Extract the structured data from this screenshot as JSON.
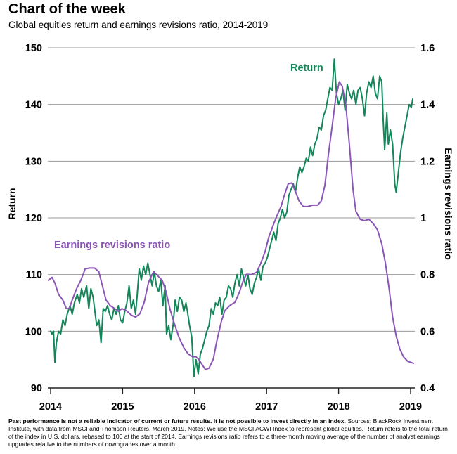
{
  "header": {
    "title": "Chart of the week",
    "subtitle": "Global equities return and earnings revisions ratio, 2014-2019"
  },
  "footnote": {
    "bold": "Past performance is not a reliable indicator of current or future results. It is not possible to invest directly in an index.",
    "text": " Sources: BlackRock Investment Institute, with data from MSCI and Thomson Reuters, March 2019. Notes: We use the MSCI ACWI Index to represent global equities. Return refers to the total return of the index in U.S. dollars, rebased to 100 at the start of 2014. Earnings revisions ratio refers to a three-month moving average of the number of analyst earnings upgrades relative to the numbers of downgrades over a month."
  },
  "chart_data": {
    "type": "line",
    "title": "Chart of the week",
    "xlabel": "",
    "ylabel": "Return",
    "y2label": "Earnings revisions ratio",
    "xlim": [
      2014,
      2019
    ],
    "ylim": [
      90,
      150
    ],
    "y2lim": [
      0.4,
      1.6
    ],
    "x_ticks": [
      "2014",
      "2015",
      "2016",
      "2017",
      "2018",
      "2019"
    ],
    "y_ticks": [
      "90",
      "100",
      "110",
      "120",
      "130",
      "140",
      "150"
    ],
    "y2_ticks": [
      "0.4",
      "0.6",
      "0.8",
      "1",
      "1.2",
      "1.4",
      "1.6"
    ],
    "grid": true,
    "colors": {
      "return": "#12875a",
      "earnings": "#8a55b5"
    },
    "series": [
      {
        "name": "Return",
        "axis": "left",
        "label_text": "Return",
        "points": [
          [
            2014.0,
            100
          ],
          [
            2014.02,
            99.5
          ],
          [
            2014.04,
            100
          ],
          [
            2014.06,
            94.5
          ],
          [
            2014.08,
            98
          ],
          [
            2014.11,
            100
          ],
          [
            2014.14,
            99.5
          ],
          [
            2014.17,
            102
          ],
          [
            2014.2,
            101
          ],
          [
            2014.23,
            103
          ],
          [
            2014.27,
            104.5
          ],
          [
            2014.3,
            103
          ],
          [
            2014.33,
            105
          ],
          [
            2014.37,
            106.5
          ],
          [
            2014.4,
            105
          ],
          [
            2014.43,
            107.5
          ],
          [
            2014.46,
            106
          ],
          [
            2014.5,
            108
          ],
          [
            2014.53,
            104
          ],
          [
            2014.56,
            107.5
          ],
          [
            2014.59,
            106
          ],
          [
            2014.61,
            104
          ],
          [
            2014.64,
            101
          ],
          [
            2014.67,
            102
          ],
          [
            2014.7,
            98
          ],
          [
            2014.73,
            104
          ],
          [
            2014.76,
            103.5
          ],
          [
            2014.79,
            104.5
          ],
          [
            2014.82,
            103
          ],
          [
            2014.85,
            102
          ],
          [
            2014.88,
            104
          ],
          [
            2014.91,
            103
          ],
          [
            2014.94,
            104.5
          ],
          [
            2014.97,
            102
          ],
          [
            2015.0,
            101.5
          ],
          [
            2015.03,
            103.5
          ],
          [
            2015.06,
            105
          ],
          [
            2015.09,
            108
          ],
          [
            2015.12,
            104
          ],
          [
            2015.15,
            105.5
          ],
          [
            2015.18,
            103
          ],
          [
            2015.2,
            106
          ],
          [
            2015.23,
            111
          ],
          [
            2015.26,
            109
          ],
          [
            2015.29,
            111.5
          ],
          [
            2015.32,
            110
          ],
          [
            2015.35,
            112
          ],
          [
            2015.38,
            110
          ],
          [
            2015.41,
            108
          ],
          [
            2015.44,
            110.5
          ],
          [
            2015.47,
            108
          ],
          [
            2015.5,
            107
          ],
          [
            2015.53,
            109
          ],
          [
            2015.56,
            104.5
          ],
          [
            2015.59,
            108
          ],
          [
            2015.61,
            99.5
          ],
          [
            2015.64,
            101
          ],
          [
            2015.67,
            98.5
          ],
          [
            2015.7,
            101
          ],
          [
            2015.73,
            105.5
          ],
          [
            2015.76,
            103.5
          ],
          [
            2015.79,
            106
          ],
          [
            2015.82,
            105.5
          ],
          [
            2015.85,
            103.5
          ],
          [
            2015.88,
            105
          ],
          [
            2015.9,
            103.5
          ],
          [
            2015.93,
            101
          ],
          [
            2015.96,
            99
          ],
          [
            2015.99,
            92
          ],
          [
            2016.02,
            95
          ],
          [
            2016.05,
            92.5
          ],
          [
            2016.08,
            96
          ],
          [
            2016.11,
            97
          ],
          [
            2016.14,
            98.5
          ],
          [
            2016.17,
            100
          ],
          [
            2016.2,
            101
          ],
          [
            2016.23,
            104
          ],
          [
            2016.26,
            103
          ],
          [
            2016.29,
            105
          ],
          [
            2016.32,
            104.5
          ],
          [
            2016.35,
            106
          ],
          [
            2016.38,
            103
          ],
          [
            2016.41,
            105.5
          ],
          [
            2016.44,
            106
          ],
          [
            2016.47,
            108
          ],
          [
            2016.5,
            107.5
          ],
          [
            2016.53,
            106
          ],
          [
            2016.56,
            108.5
          ],
          [
            2016.59,
            110
          ],
          [
            2016.62,
            108
          ],
          [
            2016.65,
            111
          ],
          [
            2016.68,
            109.5
          ],
          [
            2016.71,
            108
          ],
          [
            2016.74,
            110
          ],
          [
            2016.77,
            107.5
          ],
          [
            2016.8,
            106.5
          ],
          [
            2016.83,
            108.5
          ],
          [
            2016.86,
            109.5
          ],
          [
            2016.89,
            111
          ],
          [
            2016.92,
            109
          ],
          [
            2016.95,
            111.5
          ],
          [
            2016.98,
            112
          ],
          [
            2017.01,
            113
          ],
          [
            2017.04,
            114.5
          ],
          [
            2017.07,
            116
          ],
          [
            2017.1,
            117.5
          ],
          [
            2017.13,
            116
          ],
          [
            2017.16,
            119
          ],
          [
            2017.19,
            120
          ],
          [
            2017.22,
            121.5
          ],
          [
            2017.25,
            120
          ],
          [
            2017.28,
            121
          ],
          [
            2017.31,
            124
          ],
          [
            2017.34,
            125
          ],
          [
            2017.37,
            126
          ],
          [
            2017.4,
            124.5
          ],
          [
            2017.43,
            127
          ],
          [
            2017.46,
            129
          ],
          [
            2017.49,
            128
          ],
          [
            2017.52,
            129
          ],
          [
            2017.55,
            130.5
          ],
          [
            2017.58,
            130
          ],
          [
            2017.61,
            132.5
          ],
          [
            2017.64,
            131
          ],
          [
            2017.67,
            133
          ],
          [
            2017.7,
            134
          ],
          [
            2017.73,
            136
          ],
          [
            2017.76,
            135.5
          ],
          [
            2017.79,
            138
          ],
          [
            2017.82,
            139
          ],
          [
            2017.85,
            141
          ],
          [
            2017.88,
            143
          ],
          [
            2017.91,
            142.5
          ],
          [
            2017.94,
            148
          ],
          [
            2017.97,
            142
          ],
          [
            2018.0,
            140
          ],
          [
            2018.03,
            141
          ],
          [
            2018.06,
            142.5
          ],
          [
            2018.09,
            139
          ],
          [
            2018.12,
            143.5
          ],
          [
            2018.15,
            142
          ],
          [
            2018.18,
            141
          ],
          [
            2018.21,
            142.5
          ],
          [
            2018.24,
            140
          ],
          [
            2018.27,
            142.5
          ],
          [
            2018.3,
            143
          ],
          [
            2018.33,
            141
          ],
          [
            2018.36,
            138
          ],
          [
            2018.39,
            142
          ],
          [
            2018.42,
            144
          ],
          [
            2018.45,
            143
          ],
          [
            2018.48,
            145
          ],
          [
            2018.51,
            142
          ],
          [
            2018.54,
            141
          ],
          [
            2018.57,
            145
          ],
          [
            2018.6,
            144
          ],
          [
            2018.62,
            137
          ],
          [
            2018.64,
            132
          ],
          [
            2018.67,
            138.5
          ],
          [
            2018.69,
            133
          ],
          [
            2018.72,
            135.5
          ],
          [
            2018.75,
            133
          ],
          [
            2018.78,
            126
          ],
          [
            2018.8,
            124.5
          ],
          [
            2018.83,
            128
          ],
          [
            2018.86,
            131.5
          ],
          [
            2018.89,
            134
          ],
          [
            2018.92,
            136
          ],
          [
            2018.95,
            138
          ],
          [
            2018.98,
            140
          ],
          [
            2019.01,
            139.5
          ],
          [
            2019.03,
            141
          ]
        ]
      },
      {
        "name": "Earnings revisions ratio",
        "axis": "right",
        "label_text": "Earnings revisions ratio",
        "points": [
          [
            2013.97,
            0.78
          ],
          [
            2014.02,
            0.79
          ],
          [
            2014.06,
            0.77
          ],
          [
            2014.11,
            0.73
          ],
          [
            2014.17,
            0.71
          ],
          [
            2014.22,
            0.68
          ],
          [
            2014.26,
            0.68
          ],
          [
            2014.3,
            0.71
          ],
          [
            2014.36,
            0.75
          ],
          [
            2014.42,
            0.78
          ],
          [
            2014.48,
            0.82
          ],
          [
            2014.54,
            0.823
          ],
          [
            2014.61,
            0.823
          ],
          [
            2014.67,
            0.81
          ],
          [
            2014.72,
            0.76
          ],
          [
            2014.77,
            0.71
          ],
          [
            2014.83,
            0.69
          ],
          [
            2014.89,
            0.68
          ],
          [
            2014.94,
            0.67
          ],
          [
            2014.99,
            0.68
          ],
          [
            2015.05,
            0.673
          ],
          [
            2015.12,
            0.657
          ],
          [
            2015.18,
            0.65
          ],
          [
            2015.24,
            0.662
          ],
          [
            2015.3,
            0.702
          ],
          [
            2015.36,
            0.773
          ],
          [
            2015.43,
            0.81
          ],
          [
            2015.49,
            0.795
          ],
          [
            2015.55,
            0.78
          ],
          [
            2015.6,
            0.743
          ],
          [
            2015.66,
            0.676
          ],
          [
            2015.72,
            0.626
          ],
          [
            2015.78,
            0.58
          ],
          [
            2015.85,
            0.542
          ],
          [
            2015.91,
            0.52
          ],
          [
            2015.97,
            0.51
          ],
          [
            2016.02,
            0.51
          ],
          [
            2016.06,
            0.5
          ],
          [
            2016.11,
            0.48
          ],
          [
            2016.15,
            0.465
          ],
          [
            2016.2,
            0.47
          ],
          [
            2016.26,
            0.502
          ],
          [
            2016.31,
            0.567
          ],
          [
            2016.37,
            0.633
          ],
          [
            2016.42,
            0.673
          ],
          [
            2016.49,
            0.691
          ],
          [
            2016.56,
            0.702
          ],
          [
            2016.62,
            0.736
          ],
          [
            2016.67,
            0.775
          ],
          [
            2016.72,
            0.801
          ],
          [
            2016.79,
            0.8
          ],
          [
            2016.86,
            0.808
          ],
          [
            2016.92,
            0.84
          ],
          [
            2016.98,
            0.882
          ],
          [
            2017.03,
            0.932
          ],
          [
            2017.09,
            0.973
          ],
          [
            2017.14,
            1.005
          ],
          [
            2017.2,
            1.04
          ],
          [
            2017.25,
            1.082
          ],
          [
            2017.3,
            1.12
          ],
          [
            2017.35,
            1.123
          ],
          [
            2017.39,
            1.1
          ],
          [
            2017.45,
            1.06
          ],
          [
            2017.51,
            1.04
          ],
          [
            2017.57,
            1.04
          ],
          [
            2017.64,
            1.045
          ],
          [
            2017.71,
            1.045
          ],
          [
            2017.76,
            1.06
          ],
          [
            2017.81,
            1.115
          ],
          [
            2017.86,
            1.227
          ],
          [
            2017.91,
            1.323
          ],
          [
            2017.96,
            1.423
          ],
          [
            2018.01,
            1.48
          ],
          [
            2018.05,
            1.465
          ],
          [
            2018.1,
            1.4
          ],
          [
            2018.15,
            1.257
          ],
          [
            2018.2,
            1.1
          ],
          [
            2018.24,
            1.023
          ],
          [
            2018.3,
            0.995
          ],
          [
            2018.36,
            0.99
          ],
          [
            2018.42,
            0.995
          ],
          [
            2018.48,
            0.98
          ],
          [
            2018.54,
            0.958
          ],
          [
            2018.6,
            0.908
          ],
          [
            2018.65,
            0.84
          ],
          [
            2018.7,
            0.753
          ],
          [
            2018.75,
            0.65
          ],
          [
            2018.8,
            0.583
          ],
          [
            2018.85,
            0.538
          ],
          [
            2018.9,
            0.51
          ],
          [
            2018.96,
            0.494
          ],
          [
            2019.04,
            0.487
          ]
        ]
      }
    ]
  }
}
